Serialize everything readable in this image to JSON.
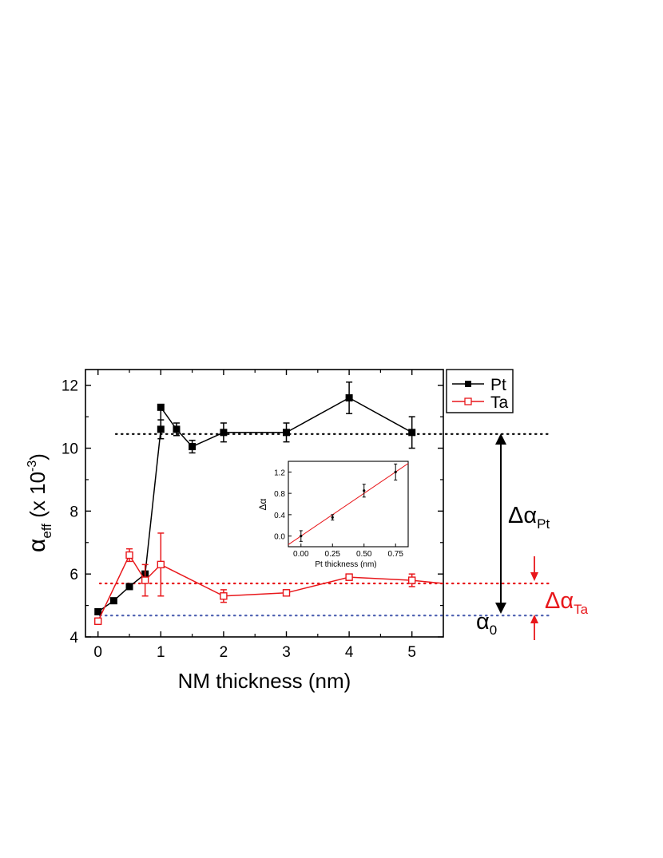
{
  "chart_data": {
    "type": "line",
    "xlabel": "NM thickness (nm)",
    "ylabel": {
      "base": "α",
      "sub": "eff",
      "unit": " (x 10",
      "exp": "-3",
      "close": ")"
    },
    "xlim": [
      -0.2,
      5.5
    ],
    "ylim": [
      4,
      12.5
    ],
    "xticks": [
      0,
      1,
      2,
      3,
      4,
      5
    ],
    "yticks": [
      4,
      6,
      8,
      10,
      12
    ],
    "legend_position": "outside-top-right",
    "series": [
      {
        "name": "Pt",
        "color": "#000000",
        "marker": "filled-square",
        "x": [
          0,
          0.25,
          0.5,
          0.75,
          1,
          1,
          1.25,
          1.5,
          2,
          3,
          4,
          5
        ],
        "y": [
          4.8,
          5.15,
          5.6,
          6.0,
          10.6,
          11.3,
          10.6,
          10.05,
          10.5,
          10.5,
          11.6,
          10.5
        ],
        "err": [
          0,
          0,
          0,
          0,
          0.3,
          0,
          0.2,
          0.2,
          0.3,
          0.3,
          0.5,
          0.5
        ]
      },
      {
        "name": "Ta",
        "color": "#e8171b",
        "marker": "open-square",
        "x": [
          0,
          0.5,
          0.75,
          1,
          2,
          3,
          4,
          5,
          5.5
        ],
        "y": [
          4.5,
          6.6,
          5.8,
          6.3,
          5.3,
          5.4,
          5.9,
          5.8,
          5.7
        ],
        "err": [
          0.1,
          0.2,
          0.5,
          1.0,
          0.2,
          0.1,
          0.1,
          0.2,
          0
        ]
      }
    ],
    "reference_lines": [
      {
        "name": "pt-level",
        "y": 10.45,
        "color": "#000000"
      },
      {
        "name": "ta-level",
        "y": 5.7,
        "color": "#e8171b"
      },
      {
        "name": "alpha0-level",
        "y": 4.68,
        "color": "#4a5db0"
      }
    ],
    "annotations": {
      "delta_pt": {
        "base": "Δα",
        "sub": "Pt",
        "color": "#000000"
      },
      "delta_ta": {
        "base": "Δα",
        "sub": "Ta",
        "color": "#e8171b"
      },
      "alpha0": {
        "base": "α",
        "sub": "0",
        "color": "#000000"
      }
    },
    "inset": {
      "type": "scatter",
      "xlabel": "Pt thickness (nm)",
      "ylabel": "Δα",
      "xlim": [
        -0.1,
        0.85
      ],
      "ylim": [
        -0.2,
        1.4
      ],
      "xticks": [
        "0.00",
        "0.25",
        "0.50",
        "0.75"
      ],
      "yticks": [
        "0.0",
        "0.4",
        "0.8",
        "1.2"
      ],
      "points": {
        "x": [
          0,
          0.25,
          0.5,
          0.75
        ],
        "y": [
          0,
          0.35,
          0.85,
          1.2
        ],
        "err": [
          0.1,
          0.05,
          0.12,
          0.15
        ]
      },
      "fit": {
        "slope": 1.6,
        "intercept": 0,
        "color": "#e8171b"
      }
    }
  }
}
